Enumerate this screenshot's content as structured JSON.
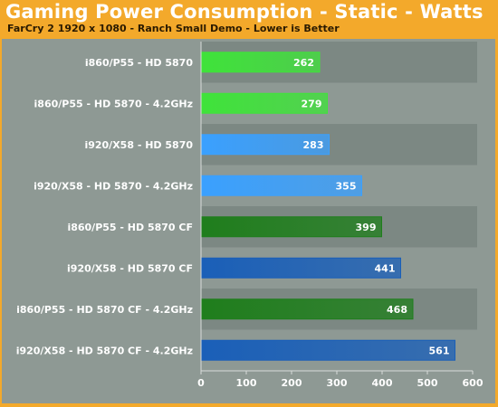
{
  "colors": {
    "frame": "#f3a92b",
    "plot_background": "#8e9994",
    "row_band_dark": "#7c8883",
    "row_band_light": "#8e9994",
    "green_light": "#3fe33a",
    "green_dark": "#1f7e1c",
    "blue_light": "#3aa0ff",
    "blue_dark": "#1a5fb8"
  },
  "chart_data": {
    "type": "bar",
    "orientation": "horizontal",
    "title": "Gaming Power Consumption - Static - Watts",
    "subtitle": "FarCry 2 1920 x 1080 - Ranch Small Demo - Lower is Better",
    "categories": [
      "i860/P55 - HD 5870",
      "i860/P55 - HD 5870 - 4.2GHz",
      "i920/X58 - HD 5870",
      "i920/X58 - HD 5870 - 4.2GHz",
      "i860/P55 - HD 5870 CF",
      "i920/X58 - HD 5870 CF",
      "i860/P55 - HD 5870 CF - 4.2GHz",
      "i920/X58 - HD 5870 CF - 4.2GHz"
    ],
    "values": [
      262,
      279,
      283,
      355,
      399,
      441,
      468,
      561
    ],
    "bar_colors": [
      "green_light",
      "green_light",
      "blue_light",
      "blue_light",
      "green_dark",
      "blue_dark",
      "green_dark",
      "blue_dark"
    ],
    "xlim": [
      0,
      600
    ],
    "xticks": [
      0,
      100,
      200,
      300,
      400,
      500,
      600
    ],
    "grid": false,
    "legend": "none"
  }
}
